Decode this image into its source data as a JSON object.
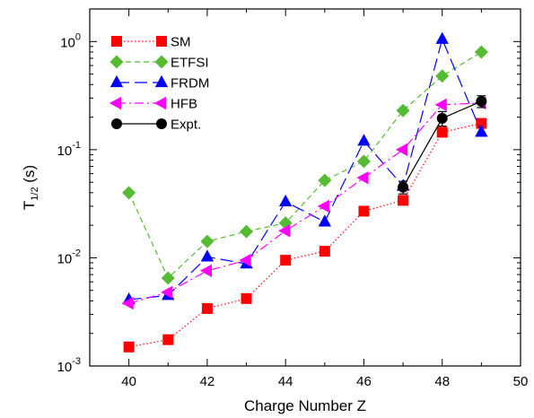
{
  "chart_data": {
    "type": "line",
    "xlabel": "Charge Number Z",
    "ylabel": {
      "base": "T",
      "subscript": "1/2",
      "suffix": " (s)"
    },
    "xlim": [
      39,
      50
    ],
    "ylim": [
      0.001,
      2
    ],
    "yscale": "log",
    "x_ticks": [
      40,
      42,
      44,
      46,
      48,
      50
    ],
    "y_ticks": [
      {
        "value": 0.001,
        "base": "10",
        "exp": "-3"
      },
      {
        "value": 0.01,
        "base": "10",
        "exp": "-2"
      },
      {
        "value": 0.1,
        "base": "10",
        "exp": "-1"
      },
      {
        "value": 1,
        "base": "10",
        "exp": "0"
      }
    ],
    "grid": false,
    "legend_position": "top-left",
    "series": [
      {
        "name": "SM",
        "color": "#ff0000",
        "marker": "square",
        "line": "dotted",
        "x": [
          40,
          41,
          42,
          43,
          44,
          45,
          46,
          47,
          48,
          49
        ],
        "y": [
          0.0015,
          0.00175,
          0.0034,
          0.0042,
          0.0095,
          0.0115,
          0.027,
          0.034,
          0.145,
          0.175
        ]
      },
      {
        "name": "ETFSI",
        "color": "#55bb33",
        "marker": "diamond",
        "line": "dashed",
        "x": [
          40,
          41,
          42,
          43,
          44,
          45,
          46,
          47,
          48,
          49
        ],
        "y": [
          0.04,
          0.0065,
          0.0142,
          0.0175,
          0.021,
          0.052,
          0.078,
          0.23,
          0.48,
          0.8
        ]
      },
      {
        "name": "FRDM",
        "color": "#0000ff",
        "marker": "triangle-up",
        "line": "longdash",
        "x": [
          40,
          41,
          42,
          43,
          44,
          45,
          46,
          47,
          48,
          49
        ],
        "y": [
          0.0041,
          0.0045,
          0.0102,
          0.0088,
          0.033,
          0.0215,
          0.12,
          0.046,
          1.05,
          0.145
        ]
      },
      {
        "name": "HFB",
        "color": "#ff00ff",
        "marker": "triangle-left",
        "line": "dashdot",
        "x": [
          40,
          41,
          42,
          43,
          44,
          45,
          46,
          47,
          48,
          49
        ],
        "y": [
          0.0038,
          0.0048,
          0.0076,
          0.0095,
          0.0178,
          0.03,
          0.055,
          0.1,
          0.26,
          0.27
        ]
      },
      {
        "name": "Expt.",
        "color": "#000000",
        "marker": "circle",
        "line": "solid",
        "x": [
          47,
          48,
          49
        ],
        "y": [
          0.045,
          0.195,
          0.28
        ],
        "yerr": [
          0.006,
          0.03,
          0.035
        ]
      }
    ]
  }
}
